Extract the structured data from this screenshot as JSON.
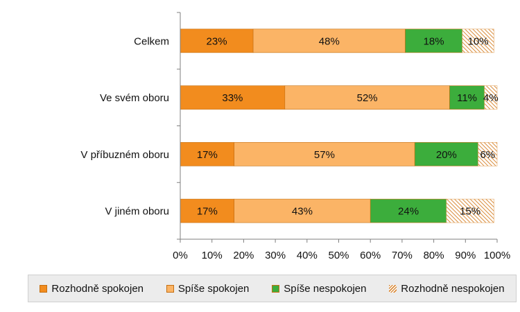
{
  "chart_data": {
    "type": "bar",
    "orientation": "horizontal",
    "stacked": true,
    "categories": [
      "Celkem",
      "Ve svém oboru",
      "V příbuzném oboru",
      "V jiném oboru"
    ],
    "series": [
      {
        "name": "Rozhodně spokojen",
        "values": [
          23,
          33,
          17,
          17
        ],
        "color": "#f28c1e",
        "pattern": "solid"
      },
      {
        "name": "Spíše spokojen",
        "values": [
          48,
          52,
          57,
          43
        ],
        "color": "#fbb466",
        "pattern": "solid"
      },
      {
        "name": "Spíše nespokojen",
        "values": [
          18,
          11,
          20,
          24
        ],
        "color": "#3cad3c",
        "pattern": "solid"
      },
      {
        "name": "Rozhodně nespokojen",
        "values": [
          10,
          4,
          6,
          15
        ],
        "color": "#d98b3a",
        "pattern": "hatch"
      }
    ],
    "data_labels": [
      [
        "23%",
        "48%",
        "18%",
        "10%"
      ],
      [
        "33%",
        "52%",
        "11%",
        "4%"
      ],
      [
        "17%",
        "57%",
        "20%",
        "6%"
      ],
      [
        "17%",
        "43%",
        "24%",
        "15%"
      ]
    ],
    "xlim": [
      0,
      100
    ],
    "x_ticks": [
      0,
      10,
      20,
      30,
      40,
      50,
      60,
      70,
      80,
      90,
      100
    ],
    "x_tick_labels": [
      "0%",
      "10%",
      "20%",
      "30%",
      "40%",
      "50%",
      "60%",
      "70%",
      "80%",
      "90%",
      "100%"
    ],
    "grid": false,
    "legend_position": "bottom",
    "title": "",
    "xlabel": "",
    "ylabel": ""
  }
}
